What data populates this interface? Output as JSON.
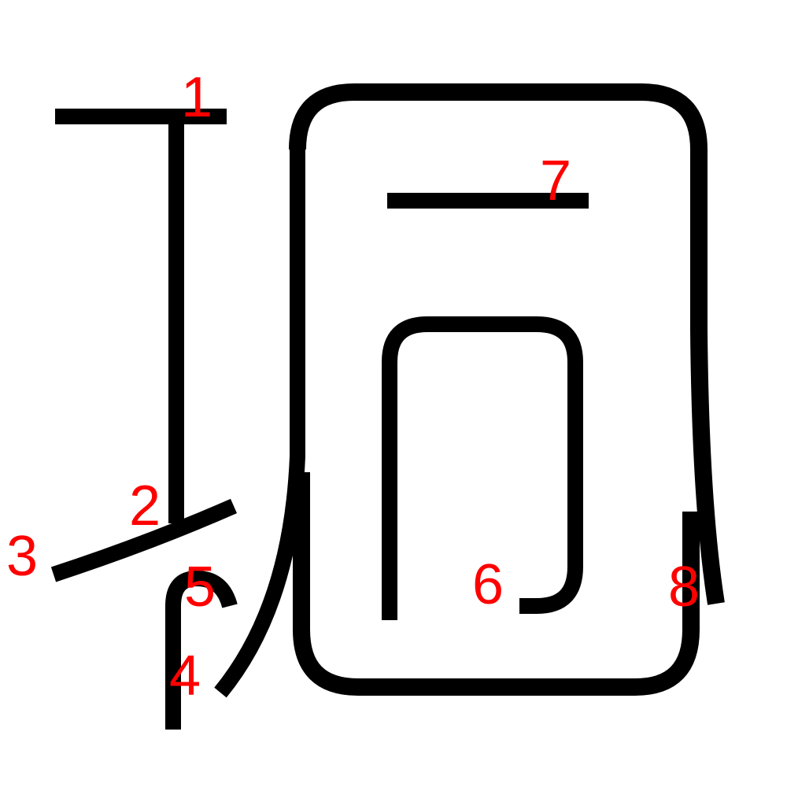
{
  "colors": {
    "background": "#ffffff",
    "stroke": "#000000",
    "number": "#ff0000"
  },
  "strokes": [
    {
      "id": "stroke-1",
      "label": "1"
    },
    {
      "id": "stroke-2",
      "label": "2"
    },
    {
      "id": "stroke-3",
      "label": "3"
    },
    {
      "id": "stroke-4",
      "label": "4"
    },
    {
      "id": "stroke-5",
      "label": "5"
    },
    {
      "id": "stroke-6",
      "label": "6"
    },
    {
      "id": "stroke-7",
      "label": "7"
    },
    {
      "id": "stroke-8",
      "label": "8"
    }
  ]
}
